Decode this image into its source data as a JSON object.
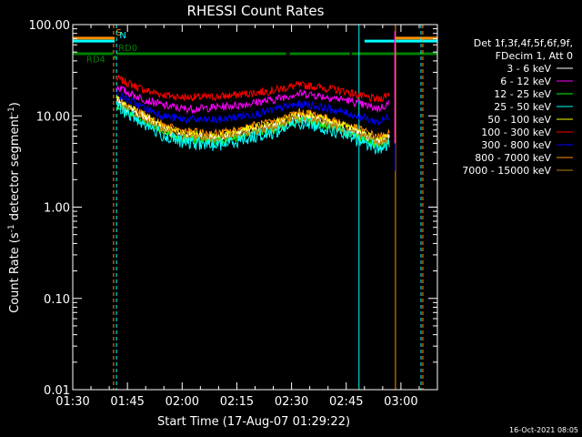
{
  "chart_data": {
    "type": "line",
    "title": "RHESSI Count Rates",
    "xlabel": "Start Time (17-Aug-07 01:29:22)",
    "ylabel": "Count Rate (s^-1 detector segment^-1)",
    "ylabel_main": "Count Rate (s",
    "ylabel_exp1": "-1",
    "ylabel_mid": " detector segment",
    "ylabel_exp2": "-1",
    "ylabel_end": ")",
    "x_ticks": [
      {
        "minutes": 0,
        "label": "01:30"
      },
      {
        "minutes": 15,
        "label": "01:45"
      },
      {
        "minutes": 30,
        "label": "02:00"
      },
      {
        "minutes": 45,
        "label": "02:15"
      },
      {
        "minutes": 60,
        "label": "02:30"
      },
      {
        "minutes": 75,
        "label": "02:45"
      },
      {
        "minutes": 90,
        "label": "03:00"
      }
    ],
    "x_range_minutes": [
      0,
      100
    ],
    "y_scale": "log",
    "ylim": [
      0.01,
      100
    ],
    "y_ticks": [
      {
        "value": 0.01,
        "label": "0.01"
      },
      {
        "value": 0.1,
        "label": "0.10"
      },
      {
        "value": 1,
        "label": "1.00"
      },
      {
        "value": 10,
        "label": "10.00"
      },
      {
        "value": 100,
        "label": "100.00"
      }
    ],
    "legend_header": [
      "Det 1f,3f,4f,5f,6f,9f,",
      "FDecim 1, Att 0"
    ],
    "legend_placement": "right",
    "series": [
      {
        "name": "3 - 6 keV",
        "color": "#ffffff",
        "points": [
          [
            12,
            14.5
          ],
          [
            15,
            12
          ],
          [
            20,
            9.5
          ],
          [
            25,
            7
          ],
          [
            30,
            6
          ],
          [
            35,
            5.8
          ],
          [
            40,
            5.7
          ],
          [
            45,
            6.2
          ],
          [
            50,
            7
          ],
          [
            55,
            7.5
          ],
          [
            60,
            9
          ],
          [
            62,
            9.4
          ],
          [
            65,
            9.3
          ],
          [
            70,
            8.2
          ],
          [
            75,
            7
          ],
          [
            80,
            6
          ],
          [
            84,
            5
          ],
          [
            87,
            5.8
          ]
        ]
      },
      {
        "name": "6 - 12 keV",
        "color": "#ff00ff",
        "points": [
          [
            12,
            21
          ],
          [
            15,
            18
          ],
          [
            20,
            15
          ],
          [
            25,
            13
          ],
          [
            30,
            12
          ],
          [
            35,
            12
          ],
          [
            40,
            12.5
          ],
          [
            45,
            13
          ],
          [
            50,
            14
          ],
          [
            55,
            15
          ],
          [
            60,
            17
          ],
          [
            62,
            17.5
          ],
          [
            65,
            17.3
          ],
          [
            70,
            16
          ],
          [
            75,
            15
          ],
          [
            80,
            13
          ],
          [
            84,
            12
          ],
          [
            87,
            14
          ]
        ]
      },
      {
        "name": "12 - 25 keV",
        "color": "#00ff00",
        "points": [
          [
            12,
            13
          ],
          [
            15,
            11
          ],
          [
            20,
            8.5
          ],
          [
            25,
            6.5
          ],
          [
            30,
            5.6
          ],
          [
            35,
            5.4
          ],
          [
            40,
            5.3
          ],
          [
            45,
            5.8
          ],
          [
            50,
            6.5
          ],
          [
            55,
            7
          ],
          [
            60,
            8.5
          ],
          [
            62,
            8.9
          ],
          [
            65,
            8.8
          ],
          [
            70,
            7.7
          ],
          [
            75,
            6.6
          ],
          [
            80,
            5.6
          ],
          [
            84,
            4.7
          ],
          [
            87,
            5.4
          ]
        ]
      },
      {
        "name": "25 - 50 keV",
        "color": "#00ffff",
        "points": [
          [
            12,
            12.5
          ],
          [
            15,
            10.5
          ],
          [
            20,
            8
          ],
          [
            25,
            6
          ],
          [
            30,
            5.1
          ],
          [
            35,
            4.9
          ],
          [
            40,
            4.8
          ],
          [
            45,
            5.3
          ],
          [
            50,
            6
          ],
          [
            55,
            6.5
          ],
          [
            60,
            7.9
          ],
          [
            62,
            8.3
          ],
          [
            65,
            8.2
          ],
          [
            70,
            7.1
          ],
          [
            75,
            6.1
          ],
          [
            80,
            5.1
          ],
          [
            84,
            4.3
          ],
          [
            87,
            4.9
          ]
        ]
      },
      {
        "name": "50 - 100 keV",
        "color": "#ffff00",
        "points": [
          [
            12,
            15
          ],
          [
            15,
            12.6
          ],
          [
            20,
            9.7
          ],
          [
            25,
            7.4
          ],
          [
            30,
            6.4
          ],
          [
            35,
            6.1
          ],
          [
            40,
            6
          ],
          [
            45,
            6.6
          ],
          [
            50,
            7.4
          ],
          [
            55,
            8
          ],
          [
            60,
            9.7
          ],
          [
            62,
            10.2
          ],
          [
            65,
            10.1
          ],
          [
            70,
            8.8
          ],
          [
            75,
            7.6
          ],
          [
            80,
            6.4
          ],
          [
            84,
            5.4
          ],
          [
            87,
            6.2
          ]
        ]
      },
      {
        "name": "100 - 300 keV",
        "color": "#ff0000",
        "points": [
          [
            12,
            26
          ],
          [
            15,
            23
          ],
          [
            20,
            19
          ],
          [
            25,
            17
          ],
          [
            30,
            16
          ],
          [
            35,
            16
          ],
          [
            40,
            16.2
          ],
          [
            45,
            17
          ],
          [
            50,
            18
          ],
          [
            55,
            19
          ],
          [
            60,
            21
          ],
          [
            62,
            21.5
          ],
          [
            65,
            21.3
          ],
          [
            70,
            20
          ],
          [
            75,
            18.5
          ],
          [
            80,
            16
          ],
          [
            84,
            15
          ],
          [
            87,
            18
          ]
        ]
      },
      {
        "name": "300 - 800 keV",
        "color": "#0000ff",
        "points": [
          [
            12,
            17.5
          ],
          [
            15,
            15
          ],
          [
            20,
            12
          ],
          [
            25,
            10
          ],
          [
            30,
            9.2
          ],
          [
            35,
            9
          ],
          [
            40,
            9
          ],
          [
            45,
            9.8
          ],
          [
            50,
            10.5
          ],
          [
            55,
            11.5
          ],
          [
            60,
            13
          ],
          [
            62,
            13.4
          ],
          [
            65,
            13.2
          ],
          [
            70,
            12
          ],
          [
            75,
            10.8
          ],
          [
            80,
            9.4
          ],
          [
            84,
            8.5
          ],
          [
            87,
            10
          ]
        ]
      },
      {
        "name": "800 - 7000 keV",
        "color": "#ff8c00",
        "points": [
          [
            12,
            15.5
          ],
          [
            15,
            13
          ],
          [
            20,
            10
          ],
          [
            25,
            7.8
          ],
          [
            30,
            6.8
          ],
          [
            35,
            6.5
          ],
          [
            40,
            6.4
          ],
          [
            45,
            7
          ],
          [
            50,
            7.9
          ],
          [
            55,
            8.5
          ],
          [
            60,
            10.3
          ],
          [
            62,
            10.8
          ],
          [
            65,
            10.7
          ],
          [
            70,
            9.3
          ],
          [
            75,
            8
          ],
          [
            80,
            6.8
          ],
          [
            84,
            5.8
          ],
          [
            87,
            6.6
          ]
        ]
      },
      {
        "name": "7000 - 15000 keV",
        "color": "#b8860b",
        "points": [
          [
            12,
            14
          ],
          [
            15,
            11.8
          ],
          [
            20,
            9
          ],
          [
            25,
            6.9
          ],
          [
            30,
            6
          ],
          [
            35,
            5.7
          ],
          [
            40,
            5.6
          ],
          [
            45,
            6.1
          ],
          [
            50,
            6.9
          ],
          [
            55,
            7.4
          ],
          [
            60,
            9
          ],
          [
            62,
            9.4
          ],
          [
            65,
            9.3
          ],
          [
            70,
            8.1
          ],
          [
            75,
            6.9
          ],
          [
            80,
            5.9
          ],
          [
            84,
            5
          ],
          [
            87,
            5.7
          ]
        ]
      }
    ],
    "flags": [
      {
        "label": "S",
        "color": "#ff8c00",
        "y": 71,
        "segments": [
          [
            0,
            11.5
          ],
          [
            88.5,
            100
          ]
        ]
      },
      {
        "label": "N",
        "color": "#00ffff",
        "y": 66,
        "segments": [
          [
            0,
            11.5
          ],
          [
            80,
            100
          ]
        ]
      },
      {
        "label": "RD0",
        "color": "#008000",
        "y": 48,
        "segments": [
          [
            0,
            11
          ],
          [
            12,
            58.5
          ],
          [
            59.5,
            76
          ],
          [
            76.5,
            100
          ]
        ]
      },
      {
        "label": "RD4",
        "color": "#008000",
        "y": 44,
        "segments": [
          [
            11.2,
            12
          ]
        ]
      }
    ],
    "vertical_markers": [
      {
        "minutes": 0,
        "color": "#00ffff",
        "style": "solid"
      },
      {
        "minutes": 11.2,
        "color": "#ff8c00",
        "style": "dashed"
      },
      {
        "minutes": 12,
        "color": "#00ffff",
        "style": "dashed"
      },
      {
        "minutes": 78.5,
        "color": "#00ffff",
        "style": "solid"
      },
      {
        "minutes": 88.5,
        "color": "#ff8c00",
        "style": "solid"
      },
      {
        "minutes": 95.5,
        "color": "#00ffff",
        "style": "dashed"
      },
      {
        "minutes": 96,
        "color": "#ff8c00",
        "style": "dashed"
      }
    ],
    "grid": false
  },
  "footer": {
    "timestamp": "16-Oct-2021 08:05"
  }
}
